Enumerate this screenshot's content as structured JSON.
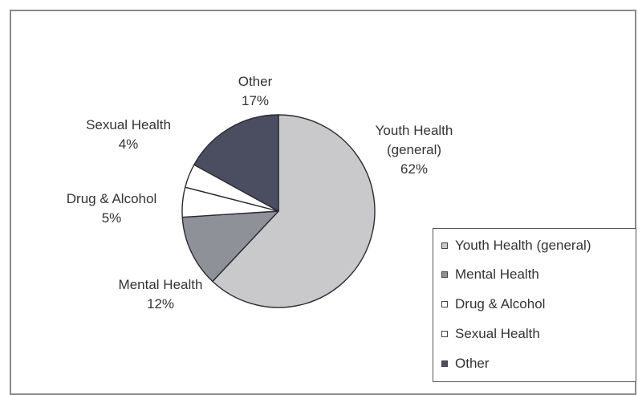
{
  "chart_data": {
    "type": "pie",
    "title": "",
    "slices": [
      {
        "name": "Youth Health (general)",
        "label_lines": [
          "Youth Health",
          "(general)",
          "62%"
        ],
        "value": 62,
        "color": "#c9c9cc"
      },
      {
        "name": "Mental Health",
        "label_lines": [
          "Mental Health",
          "12%"
        ],
        "value": 12,
        "color": "#8f9199"
      },
      {
        "name": "Drug & Alcohol",
        "label_lines": [
          "Drug & Alcohol",
          "5%"
        ],
        "value": 5,
        "color": "#ffffff"
      },
      {
        "name": "Sexual Health",
        "label_lines": [
          "Sexual Health",
          "4%"
        ],
        "value": 4,
        "color": "#ffffff"
      },
      {
        "name": "Other",
        "label_lines": [
          "Other",
          "17%"
        ],
        "value": 17,
        "color": "#4a4e60"
      }
    ],
    "legend": {
      "position": "bottom-right",
      "entries": [
        "Youth Health (general)",
        "Mental Health",
        "Drug & Alcohol",
        "Sexual Health",
        "Other"
      ]
    }
  }
}
